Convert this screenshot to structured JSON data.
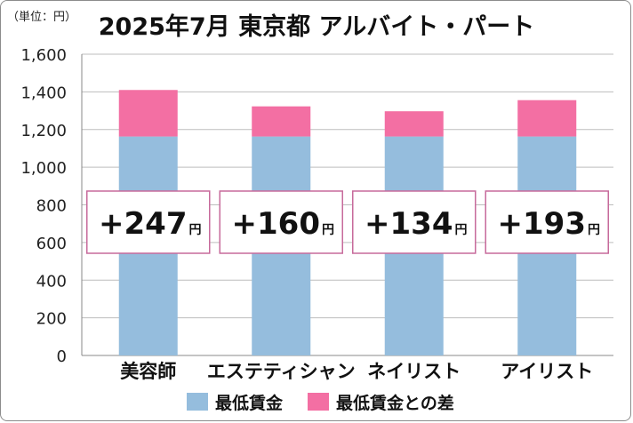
{
  "unit_label": "（単位：円）",
  "chart_data": {
    "type": "bar",
    "stacked": true,
    "title": "2025年7月 東京都 アルバイト・パート",
    "categories": [
      "美容師",
      "エステティシャン",
      "ネイリスト",
      "アイリスト"
    ],
    "series": [
      {
        "name": "最低賃金",
        "color": "#95bddd",
        "values": [
          1163,
          1163,
          1163,
          1163
        ]
      },
      {
        "name": "最低賃金との差",
        "color": "#f36fa3",
        "values": [
          247,
          160,
          134,
          193
        ]
      }
    ],
    "diff_labels": [
      {
        "value": "+247",
        "unit": "円"
      },
      {
        "value": "+160",
        "unit": "円"
      },
      {
        "value": "+134",
        "unit": "円"
      },
      {
        "value": "+193",
        "unit": "円"
      }
    ],
    "ylim": [
      0,
      1600
    ],
    "yticks": [
      0,
      200,
      400,
      600,
      800,
      1000,
      1200,
      1400,
      1600
    ],
    "ytick_labels": [
      "0",
      "200",
      "400",
      "600",
      "800",
      "1,000",
      "1,200",
      "1,400",
      "1,600"
    ],
    "grid": true,
    "legend_position": "bottom",
    "label_box_color": "#c76a9b"
  }
}
